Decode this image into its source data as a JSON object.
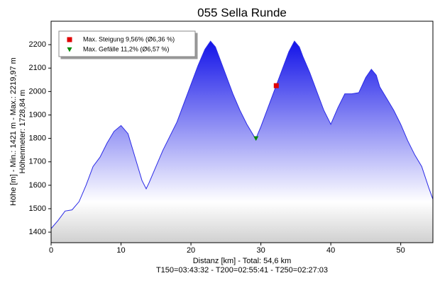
{
  "chart_data": {
    "type": "area",
    "title": "055 Sella Runde",
    "y_label": [
      "Höhe [m] - Min.: 1421 m - Max.: 2219,97 m",
      "Höhenmeter: 1728,84 m"
    ],
    "x_label": [
      "Distanz [km] - Total: 54,6 km",
      "T150=03:43:32 - T200=02:55:41 - T250=02:27:03"
    ],
    "x": [
      0,
      1,
      2,
      3,
      4,
      5,
      6,
      7,
      8,
      9,
      10,
      11,
      12,
      13,
      13.6,
      14,
      15,
      16,
      17,
      18,
      19,
      20,
      21,
      22,
      22.8,
      23.5,
      24,
      25,
      26,
      27,
      28,
      29,
      29.3,
      30,
      31,
      32,
      33,
      34,
      34.8,
      35.5,
      36,
      37,
      38,
      39,
      40,
      41,
      42,
      43,
      44,
      45,
      45.8,
      46.5,
      47,
      48,
      49,
      50,
      51,
      52,
      53,
      54,
      54.6
    ],
    "series": [
      {
        "color": "#2a2ae6",
        "values": [
          1415,
          1450,
          1490,
          1495,
          1530,
          1600,
          1680,
          1720,
          1780,
          1830,
          1855,
          1820,
          1720,
          1620,
          1585,
          1610,
          1680,
          1750,
          1810,
          1870,
          1950,
          2030,
          2110,
          2180,
          2215,
          2190,
          2150,
          2070,
          1990,
          1920,
          1860,
          1810,
          1800,
          1850,
          1930,
          2010,
          2090,
          2170,
          2215,
          2190,
          2150,
          2080,
          2000,
          1920,
          1860,
          1930,
          1990,
          1990,
          1995,
          2060,
          2095,
          2070,
          2020,
          1970,
          1920,
          1860,
          1790,
          1730,
          1680,
          1590,
          1540
        ]
      }
    ],
    "markers": [
      {
        "name": "Max. Steigung 9,56% (Ø6,36 %)",
        "color": "#e00000",
        "shape": "square",
        "x": 32.2,
        "y": 2025
      },
      {
        "name": "Max. Gefälle 11,2% (Ø6,57 %)",
        "color": "#008800",
        "shape": "triangle",
        "x": 29.3,
        "y": 1800
      }
    ],
    "xlim": [
      0,
      54.6
    ],
    "ylim": [
      1355,
      2300
    ],
    "xticks": [
      0,
      10,
      20,
      30,
      40,
      50
    ],
    "yticks": [
      1400,
      1500,
      1600,
      1700,
      1800,
      1900,
      2000,
      2100,
      2200
    ],
    "grid": false
  }
}
